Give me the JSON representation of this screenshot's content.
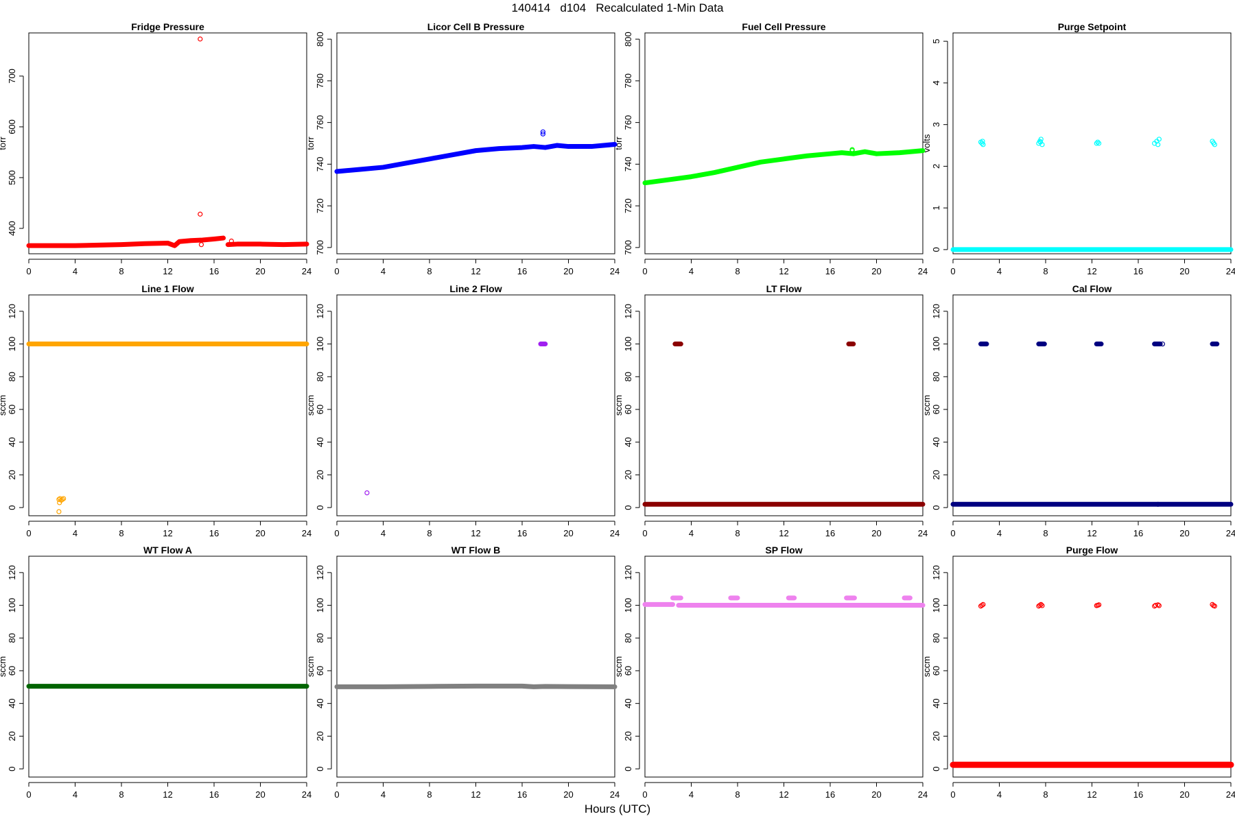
{
  "page": {
    "title": "140414   d104   Recalculated 1-Min Data",
    "x_common_label": "Hours (UTC)"
  },
  "chart_data": [
    {
      "type": "scatter",
      "title": "Fridge Pressure",
      "xlabel": "",
      "ylabel": "torr",
      "xlim": [
        0,
        24
      ],
      "ylim": [
        350,
        785
      ],
      "xticks": [
        0,
        4,
        8,
        12,
        16,
        20,
        24
      ],
      "yticks": [
        400,
        500,
        600,
        700
      ],
      "color": "#ff0000",
      "series": [
        {
          "style": "line",
          "x": [
            0,
            4,
            8,
            10,
            12,
            12.6,
            13,
            14,
            15,
            16,
            16.8
          ],
          "y": [
            366,
            366,
            368,
            370,
            371,
            366,
            374,
            376,
            377,
            379,
            381
          ],
          "thick": 7
        },
        {
          "style": "line",
          "x": [
            17.2,
            18,
            20,
            22,
            24
          ],
          "y": [
            368,
            369,
            369,
            368,
            369
          ],
          "thick": 7
        },
        {
          "style": "points",
          "x": [
            14.8,
            14.8,
            14.9,
            17.5
          ],
          "y": [
            773,
            428,
            368,
            375
          ]
        }
      ]
    },
    {
      "type": "scatter",
      "title": "Licor Cell B Pressure",
      "xlabel": "",
      "ylabel": "torr",
      "xlim": [
        0,
        24
      ],
      "ylim": [
        697,
        803
      ],
      "xticks": [
        0,
        4,
        8,
        12,
        16,
        20,
        24
      ],
      "yticks": [
        700,
        720,
        740,
        760,
        780,
        800
      ],
      "color": "#0000ff",
      "series": [
        {
          "style": "line",
          "x": [
            0,
            2,
            4,
            6,
            8,
            10,
            12,
            14,
            16,
            17,
            18,
            19,
            20,
            22,
            24
          ],
          "y": [
            736.5,
            737.5,
            738.5,
            740.5,
            742.5,
            744.5,
            746.5,
            747.5,
            748,
            748.5,
            748,
            749,
            748.5,
            748.5,
            749.5
          ],
          "thick": 7
        },
        {
          "style": "points",
          "x": [
            17.8,
            17.8
          ],
          "y": [
            754.5,
            755.5
          ]
        }
      ]
    },
    {
      "type": "scatter",
      "title": "Fuel Cell Pressure",
      "xlabel": "",
      "ylabel": "torr",
      "xlim": [
        0,
        24
      ],
      "ylim": [
        697,
        803
      ],
      "xticks": [
        0,
        4,
        8,
        12,
        16,
        20,
        24
      ],
      "yticks": [
        700,
        720,
        740,
        760,
        780,
        800
      ],
      "color": "#00ff00",
      "series": [
        {
          "style": "line",
          "x": [
            0,
            2,
            4,
            6,
            8,
            10,
            12,
            14,
            16,
            17,
            18,
            19,
            20,
            22,
            24
          ],
          "y": [
            731,
            732.5,
            734,
            736,
            738.5,
            741,
            742.5,
            744,
            745,
            745.5,
            745,
            746,
            745,
            745.5,
            746.5
          ],
          "thick": 7
        },
        {
          "style": "points",
          "x": [
            17.9,
            17.9
          ],
          "y": [
            746.5,
            747
          ]
        }
      ]
    },
    {
      "type": "scatter",
      "title": "Purge Setpoint",
      "xlabel": "",
      "ylabel": "volts",
      "xlim": [
        0,
        24
      ],
      "ylim": [
        -0.1,
        5.2
      ],
      "xticks": [
        0,
        4,
        8,
        12,
        16,
        20,
        24
      ],
      "yticks": [
        0,
        1,
        2,
        3,
        4,
        5
      ],
      "color": "#00ffff",
      "series": [
        {
          "style": "line",
          "x": [
            0,
            24
          ],
          "y": [
            0,
            0
          ],
          "thick": 7
        },
        {
          "style": "points",
          "x": [
            2.4,
            2.5,
            2.6,
            2.55,
            7.4,
            7.5,
            7.6,
            7.7,
            7.55,
            12.4,
            12.6,
            12.5,
            17.4,
            17.6,
            17.8,
            17.7,
            22.4,
            22.6,
            22.5
          ],
          "y": [
            2.58,
            2.55,
            2.52,
            2.6,
            2.55,
            2.6,
            2.65,
            2.52,
            2.58,
            2.55,
            2.55,
            2.58,
            2.55,
            2.6,
            2.65,
            2.52,
            2.6,
            2.52,
            2.56
          ]
        }
      ]
    },
    {
      "type": "scatter",
      "title": "Line 1 Flow",
      "xlabel": "",
      "ylabel": "sccm",
      "xlim": [
        0,
        24
      ],
      "ylim": [
        -5,
        130
      ],
      "xticks": [
        0,
        4,
        8,
        12,
        16,
        20,
        24
      ],
      "yticks": [
        0,
        20,
        40,
        60,
        80,
        100,
        120
      ],
      "color": "#ffa500",
      "series": [
        {
          "style": "line",
          "x": [
            0,
            24
          ],
          "y": [
            100,
            100
          ],
          "thick": 7
        },
        {
          "style": "points",
          "x": [
            2.6,
            2.7,
            2.8,
            2.9,
            3.0,
            2.65,
            2.6
          ],
          "y": [
            5,
            5.5,
            4.5,
            5,
            5.5,
            3,
            -2.5
          ]
        }
      ]
    },
    {
      "type": "scatter",
      "title": "Line 2 Flow",
      "xlabel": "",
      "ylabel": "sccm",
      "xlim": [
        0,
        24
      ],
      "ylim": [
        -5,
        130
      ],
      "xticks": [
        0,
        4,
        8,
        12,
        16,
        20,
        24
      ],
      "yticks": [
        0,
        20,
        40,
        60,
        80,
        100,
        120
      ],
      "color": "#a020f0",
      "series": [
        {
          "style": "line",
          "x": [
            17.6,
            18.0
          ],
          "y": [
            100,
            100
          ],
          "thick": 7
        },
        {
          "style": "points",
          "x": [
            2.6
          ],
          "y": [
            9
          ]
        }
      ]
    },
    {
      "type": "scatter",
      "title": "LT Flow",
      "xlabel": "",
      "ylabel": "sccm",
      "xlim": [
        0,
        24
      ],
      "ylim": [
        -5,
        130
      ],
      "xticks": [
        0,
        4,
        8,
        12,
        16,
        20,
        24
      ],
      "yticks": [
        0,
        20,
        40,
        60,
        80,
        100,
        120
      ],
      "color": "#8b0000",
      "series": [
        {
          "style": "line",
          "x": [
            0,
            24
          ],
          "y": [
            2,
            2
          ],
          "thick": 7
        },
        {
          "style": "line",
          "x": [
            2.6,
            3.1
          ],
          "y": [
            100,
            100
          ],
          "thick": 7
        },
        {
          "style": "line",
          "x": [
            17.6,
            18.0
          ],
          "y": [
            100,
            100
          ],
          "thick": 7
        }
      ]
    },
    {
      "type": "scatter",
      "title": "Cal Flow",
      "xlabel": "",
      "ylabel": "sccm",
      "xlim": [
        0,
        24
      ],
      "ylim": [
        -5,
        130
      ],
      "xticks": [
        0,
        4,
        8,
        12,
        16,
        20,
        24
      ],
      "yticks": [
        0,
        20,
        40,
        60,
        80,
        100,
        120
      ],
      "color": "#000080",
      "series": [
        {
          "style": "line",
          "x": [
            0,
            24
          ],
          "y": [
            2,
            2
          ],
          "thick": 7
        },
        {
          "style": "line",
          "x": [
            2.4,
            2.9
          ],
          "y": [
            100,
            100
          ],
          "thick": 7
        },
        {
          "style": "line",
          "x": [
            7.4,
            7.9
          ],
          "y": [
            100,
            100
          ],
          "thick": 7
        },
        {
          "style": "line",
          "x": [
            12.4,
            12.8
          ],
          "y": [
            100,
            100
          ],
          "thick": 7
        },
        {
          "style": "line",
          "x": [
            17.4,
            17.9
          ],
          "y": [
            100,
            100
          ],
          "thick": 7
        },
        {
          "style": "line",
          "x": [
            22.4,
            22.8
          ],
          "y": [
            100,
            100
          ],
          "thick": 7
        },
        {
          "style": "points",
          "x": [
            18.1,
            17.7
          ],
          "y": [
            100,
            2
          ]
        }
      ]
    },
    {
      "type": "scatter",
      "title": "WT Flow A",
      "xlabel": "",
      "ylabel": "sccm",
      "xlim": [
        0,
        24
      ],
      "ylim": [
        -5,
        130
      ],
      "xticks": [
        0,
        4,
        8,
        12,
        16,
        20,
        24
      ],
      "yticks": [
        0,
        20,
        40,
        60,
        80,
        100,
        120
      ],
      "color": "#006400",
      "series": [
        {
          "style": "line",
          "x": [
            0,
            24
          ],
          "y": [
            50.5,
            50.5
          ],
          "thick": 7
        }
      ]
    },
    {
      "type": "scatter",
      "title": "WT Flow B",
      "xlabel": "",
      "ylabel": "sccm",
      "xlim": [
        0,
        24
      ],
      "ylim": [
        -5,
        130
      ],
      "xticks": [
        0,
        4,
        8,
        12,
        16,
        20,
        24
      ],
      "yticks": [
        0,
        20,
        40,
        60,
        80,
        100,
        120
      ],
      "color": "#808080",
      "series": [
        {
          "style": "line",
          "x": [
            0,
            4,
            8,
            12,
            16,
            17,
            18,
            20,
            24
          ],
          "y": [
            50.2,
            50.2,
            50.4,
            50.6,
            50.6,
            50.2,
            50.4,
            50.3,
            50.2
          ],
          "thick": 7
        }
      ]
    },
    {
      "type": "scatter",
      "title": "SP Flow",
      "xlabel": "",
      "ylabel": "sccm",
      "xlim": [
        0,
        24
      ],
      "ylim": [
        -5,
        130
      ],
      "xticks": [
        0,
        4,
        8,
        12,
        16,
        20,
        24
      ],
      "yticks": [
        0,
        20,
        40,
        60,
        80,
        100,
        120
      ],
      "color": "#ee82ee",
      "series": [
        {
          "style": "line",
          "x": [
            0,
            2.4
          ],
          "y": [
            100.5,
            100.5
          ],
          "thick": 7
        },
        {
          "style": "line",
          "x": [
            2.9,
            24
          ],
          "y": [
            100,
            100
          ],
          "thick": 7
        },
        {
          "style": "line",
          "x": [
            2.4,
            3.1
          ],
          "y": [
            104.5,
            104.5
          ],
          "thick": 7
        },
        {
          "style": "line",
          "x": [
            7.4,
            8.0
          ],
          "y": [
            104.5,
            104.5
          ],
          "thick": 7
        },
        {
          "style": "line",
          "x": [
            12.4,
            12.9
          ],
          "y": [
            104.5,
            104.5
          ],
          "thick": 7
        },
        {
          "style": "line",
          "x": [
            17.4,
            18.1
          ],
          "y": [
            104.5,
            104.5
          ],
          "thick": 7
        },
        {
          "style": "line",
          "x": [
            22.4,
            22.9
          ],
          "y": [
            104.5,
            104.5
          ],
          "thick": 7
        }
      ]
    },
    {
      "type": "scatter",
      "title": "Purge Flow",
      "xlabel": "",
      "ylabel": "sccm",
      "xlim": [
        0,
        24
      ],
      "ylim": [
        -5,
        130
      ],
      "xticks": [
        0,
        4,
        8,
        12,
        16,
        20,
        24
      ],
      "yticks": [
        0,
        20,
        40,
        60,
        80,
        100,
        120
      ],
      "color": "#ff0000",
      "series": [
        {
          "style": "line",
          "x": [
            0,
            24
          ],
          "y": [
            2.5,
            2.5
          ],
          "thick": 9
        },
        {
          "style": "points",
          "x": [
            2.4,
            2.5,
            2.6,
            7.4,
            7.5,
            7.6,
            7.7,
            12.4,
            12.5,
            12.6,
            17.4,
            17.5,
            17.7,
            17.8,
            22.4,
            22.5,
            22.6
          ],
          "y": [
            99.5,
            100,
            100.5,
            99.5,
            100,
            100.5,
            99.8,
            99.8,
            100,
            100.3,
            99.5,
            100,
            100.3,
            99.8,
            100.5,
            99.8,
            99.5
          ]
        }
      ]
    }
  ]
}
